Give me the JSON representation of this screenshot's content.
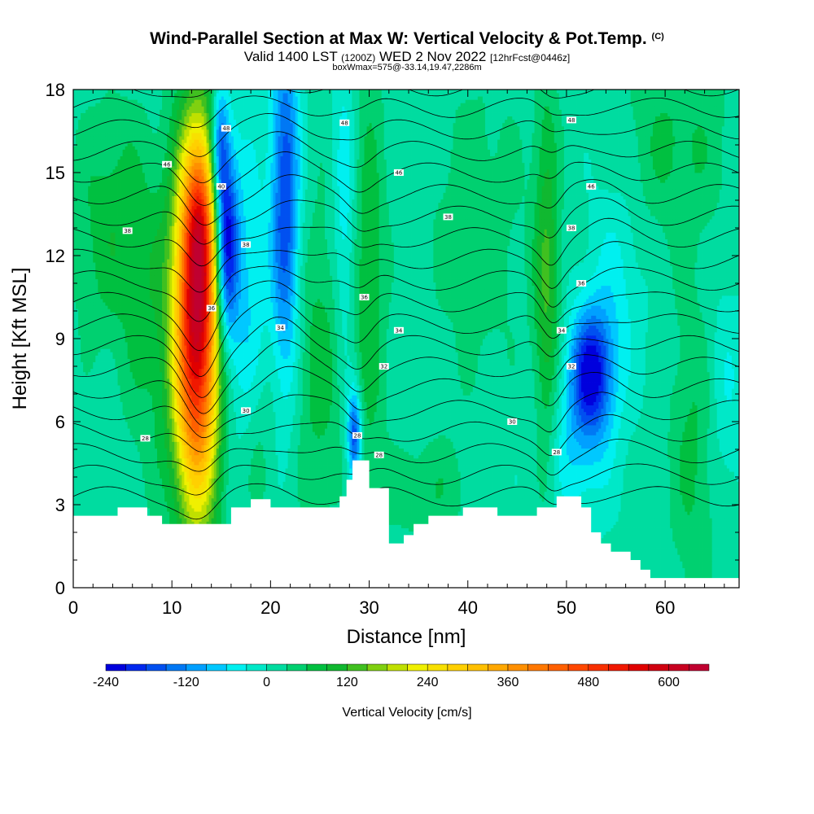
{
  "header": {
    "title": "Wind-Parallel Section at Max W: Vertical Velocity & Pot.Temp.",
    "copyright": "(C)",
    "valid_prefix": "Valid 1400 LST",
    "valid_zulu": "(1200Z)",
    "valid_date": "WED 2 Nov 2022",
    "forecast": "[12hrFcst@0446z]",
    "box_info": "boxWmax=575@-33.14,19.47,2286m"
  },
  "chart_data": {
    "type": "heatmap",
    "xlabel": "Distance [nm]",
    "ylabel": "Height [Kft MSL]",
    "xlim": [
      0,
      67.5
    ],
    "ylim": [
      0,
      18
    ],
    "x_ticks": [
      "0",
      "10",
      "20",
      "30",
      "40",
      "50",
      "60"
    ],
    "y_ticks": [
      "0",
      "3",
      "6",
      "9",
      "12",
      "15",
      "18"
    ],
    "x_tick_values": [
      0,
      10,
      20,
      30,
      40,
      50,
      60
    ],
    "y_tick_values": [
      0,
      3,
      6,
      9,
      12,
      15,
      18
    ],
    "colorbar_label": "Vertical Velocity [cm/s]",
    "colorbar_ticks": [
      "-240",
      "-120",
      "0",
      "120",
      "240",
      "360",
      "480",
      "600"
    ],
    "colorbar_levels": [
      -240,
      -210,
      -180,
      -150,
      -120,
      -90,
      -60,
      -30,
      0,
      30,
      60,
      90,
      120,
      150,
      180,
      210,
      240,
      270,
      300,
      330,
      360,
      390,
      420,
      450,
      480,
      510,
      540,
      570,
      600,
      630,
      660
    ],
    "colorbar_colors": [
      "#0000dd",
      "#0028ee",
      "#0050f0",
      "#0078f4",
      "#00a0ff",
      "#00c8ff",
      "#00f0f0",
      "#00e8c8",
      "#00dca0",
      "#00d070",
      "#00c040",
      "#10b830",
      "#40c020",
      "#80d010",
      "#c0e000",
      "#f0f000",
      "#f8e000",
      "#ffd000",
      "#ffc000",
      "#ffa800",
      "#ff9000",
      "#ff7800",
      "#ff6000",
      "#ff4800",
      "#f83000",
      "#f01800",
      "#e00000",
      "#d00010",
      "#c80020",
      "#c00030"
    ],
    "terrain_profile_kft": [
      [
        0,
        2.6
      ],
      [
        4.5,
        2.6
      ],
      [
        4.5,
        2.9
      ],
      [
        7.5,
        2.9
      ],
      [
        7.5,
        2.6
      ],
      [
        9,
        2.6
      ],
      [
        9,
        2.3
      ],
      [
        16,
        2.3
      ],
      [
        16,
        2.9
      ],
      [
        18,
        2.9
      ],
      [
        18,
        3.2
      ],
      [
        20,
        3.2
      ],
      [
        20,
        2.9
      ],
      [
        27,
        2.9
      ],
      [
        27,
        3.3
      ],
      [
        27.7,
        3.3
      ],
      [
        27.7,
        3.9
      ],
      [
        28.3,
        3.9
      ],
      [
        28.3,
        4.6
      ],
      [
        30,
        4.6
      ],
      [
        30,
        3.6
      ],
      [
        32,
        3.6
      ],
      [
        32,
        1.6
      ],
      [
        33.5,
        1.6
      ],
      [
        33.5,
        1.9
      ],
      [
        34.5,
        1.9
      ],
      [
        34.5,
        2.3
      ],
      [
        36,
        2.3
      ],
      [
        36,
        2.6
      ],
      [
        39.5,
        2.6
      ],
      [
        39.5,
        2.9
      ],
      [
        43,
        2.9
      ],
      [
        43,
        2.6
      ],
      [
        47,
        2.6
      ],
      [
        47,
        2.9
      ],
      [
        49,
        2.9
      ],
      [
        49,
        3.3
      ],
      [
        51.5,
        3.3
      ],
      [
        51.5,
        2.9
      ],
      [
        52.5,
        2.9
      ],
      [
        52.5,
        2.0
      ],
      [
        53.5,
        2.0
      ],
      [
        53.5,
        1.6
      ],
      [
        54.5,
        1.6
      ],
      [
        54.5,
        1.3
      ],
      [
        56.5,
        1.3
      ],
      [
        56.5,
        1.0
      ],
      [
        57.5,
        1.0
      ],
      [
        57.5,
        0.65
      ],
      [
        58.5,
        0.65
      ],
      [
        58.5,
        0.35
      ],
      [
        67.5,
        0.35
      ]
    ],
    "updraft_cores": [
      {
        "x": 12.5,
        "y": 9.5,
        "sx": 1.6,
        "sy": 4.6,
        "w": 575
      },
      {
        "x": 12.8,
        "y": 13.2,
        "sx": 1.0,
        "sy": 2.2,
        "w": 170
      },
      {
        "x": 48.0,
        "y": 11.0,
        "sx": 0.9,
        "sy": 5.0,
        "w": 110
      },
      {
        "x": 30.0,
        "y": 11.0,
        "sx": 1.2,
        "sy": 5.5,
        "w": 75
      },
      {
        "x": 25.0,
        "y": 8.0,
        "sx": 1.8,
        "sy": 4.0,
        "w": 65
      },
      {
        "x": 63.0,
        "y": 5.0,
        "sx": 1.8,
        "sy": 4.0,
        "w": 60
      },
      {
        "x": 4.0,
        "y": 13.0,
        "sx": 3.0,
        "sy": 3.0,
        "w": 70
      },
      {
        "x": 61.0,
        "y": 16.0,
        "sx": 4.0,
        "sy": 2.5,
        "w": 55
      },
      {
        "x": 41.0,
        "y": 13.0,
        "sx": 3.5,
        "sy": 4.0,
        "w": 40
      },
      {
        "x": 18.5,
        "y": 5.0,
        "sx": 1.4,
        "sy": 2.5,
        "w": 50
      },
      {
        "x": 36.0,
        "y": 3.5,
        "sx": 3.0,
        "sy": 1.3,
        "w": 45
      },
      {
        "x": 8.0,
        "y": 9.0,
        "sx": 2.0,
        "sy": 4.0,
        "w": 50
      }
    ],
    "downdraft_cores": [
      {
        "x": 15.5,
        "y": 12.5,
        "sx": 0.8,
        "sy": 2.5,
        "w": -260
      },
      {
        "x": 14.8,
        "y": 16.0,
        "sx": 0.6,
        "sy": 1.5,
        "w": -160
      },
      {
        "x": 21.5,
        "y": 14.0,
        "sx": 1.0,
        "sy": 4.5,
        "w": -190
      },
      {
        "x": 52.5,
        "y": 7.8,
        "sx": 1.5,
        "sy": 1.6,
        "w": -230
      },
      {
        "x": 28.5,
        "y": 5.5,
        "sx": 0.5,
        "sy": 1.2,
        "w": -200
      },
      {
        "x": 17.5,
        "y": 10.0,
        "sx": 1.5,
        "sy": 4.5,
        "w": -80
      },
      {
        "x": 27.5,
        "y": 13.5,
        "sx": 0.8,
        "sy": 4.0,
        "w": -70
      },
      {
        "x": 51.0,
        "y": 5.0,
        "sx": 2.5,
        "sy": 2.0,
        "w": -60
      },
      {
        "x": 55.0,
        "y": 11.0,
        "sx": 2.0,
        "sy": 3.0,
        "w": -50
      },
      {
        "x": 66.0,
        "y": 7.0,
        "sx": 1.5,
        "sy": 3.0,
        "w": -45
      }
    ],
    "isentrope_labels": [
      {
        "text": "48",
        "x": 15.5,
        "y": 16.6
      },
      {
        "text": "48",
        "x": 27.5,
        "y": 16.8
      },
      {
        "text": "48",
        "x": 50.5,
        "y": 16.9
      },
      {
        "text": "46",
        "x": 9.5,
        "y": 15.3
      },
      {
        "text": "46",
        "x": 33.0,
        "y": 15.0
      },
      {
        "text": "46",
        "x": 52.5,
        "y": 14.5
      },
      {
        "text": "40",
        "x": 15.0,
        "y": 14.5
      },
      {
        "text": "38",
        "x": 38.0,
        "y": 13.4
      },
      {
        "text": "38",
        "x": 50.5,
        "y": 13.0
      },
      {
        "text": "38",
        "x": 5.5,
        "y": 12.9
      },
      {
        "text": "38",
        "x": 17.5,
        "y": 12.4
      },
      {
        "text": "36",
        "x": 51.5,
        "y": 11.0
      },
      {
        "text": "36",
        "x": 14.0,
        "y": 10.1
      },
      {
        "text": "36",
        "x": 29.5,
        "y": 10.5
      },
      {
        "text": "34",
        "x": 21.0,
        "y": 9.4
      },
      {
        "text": "34",
        "x": 33.0,
        "y": 9.3
      },
      {
        "text": "34",
        "x": 49.5,
        "y": 9.3
      },
      {
        "text": "32",
        "x": 31.5,
        "y": 8.0
      },
      {
        "text": "32",
        "x": 50.5,
        "y": 8.0
      },
      {
        "text": "30",
        "x": 17.5,
        "y": 6.4
      },
      {
        "text": "30",
        "x": 44.5,
        "y": 6.0
      },
      {
        "text": "28",
        "x": 7.3,
        "y": 5.4
      },
      {
        "text": "28",
        "x": 28.8,
        "y": 5.5
      },
      {
        "text": "28",
        "x": 31.0,
        "y": 4.8
      },
      {
        "text": "28",
        "x": 49.0,
        "y": 4.9
      }
    ]
  }
}
